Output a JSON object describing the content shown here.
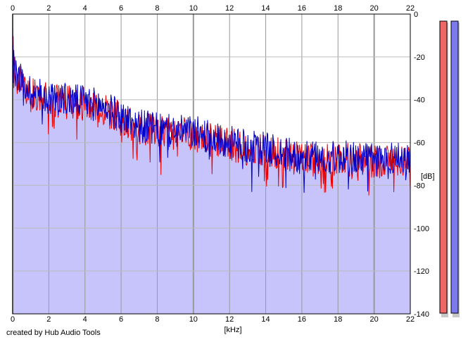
{
  "chart_data": {
    "type": "line",
    "title": "",
    "xlabel": "[kHz]",
    "ylabel": "[dB]",
    "xlim": [
      0,
      22
    ],
    "ylim": [
      -140,
      0
    ],
    "x_ticks": [
      "0",
      "2",
      "4",
      "6",
      "8",
      "10",
      "12",
      "14",
      "16",
      "18",
      "20",
      "22"
    ],
    "y_ticks": [
      "0",
      "-20",
      "-40",
      "-60",
      "-80",
      "-100",
      "-120",
      "-140"
    ],
    "grid": true,
    "series": [
      {
        "color": "#ee0000",
        "profile": [
          [
            0,
            -14
          ],
          [
            0.2,
            -30
          ],
          [
            1,
            -37
          ],
          [
            2,
            -40
          ],
          [
            3,
            -41
          ],
          [
            4,
            -42
          ],
          [
            5,
            -44
          ],
          [
            6,
            -49
          ],
          [
            7,
            -53
          ],
          [
            8,
            -55
          ],
          [
            9,
            -56
          ],
          [
            10,
            -56
          ],
          [
            11,
            -59
          ],
          [
            12,
            -61
          ],
          [
            13,
            -63
          ],
          [
            14,
            -64
          ],
          [
            15,
            -66
          ],
          [
            16,
            -68
          ],
          [
            17,
            -68
          ],
          [
            18,
            -68
          ],
          [
            19,
            -68
          ],
          [
            20,
            -69
          ],
          [
            21,
            -68
          ],
          [
            22,
            -68
          ]
        ]
      },
      {
        "color": "#0000cc",
        "profile": [
          [
            0,
            -12
          ],
          [
            0.2,
            -28
          ],
          [
            1,
            -36
          ],
          [
            2,
            -39
          ],
          [
            3,
            -40
          ],
          [
            4,
            -41
          ],
          [
            5,
            -43
          ],
          [
            6,
            -48
          ],
          [
            7,
            -52
          ],
          [
            8,
            -54
          ],
          [
            9,
            -55
          ],
          [
            10,
            -55
          ],
          [
            11,
            -58
          ],
          [
            12,
            -60
          ],
          [
            13,
            -62
          ],
          [
            14,
            -63
          ],
          [
            15,
            -65
          ],
          [
            16,
            -67
          ],
          [
            17,
            -67
          ],
          [
            18,
            -67
          ],
          [
            19,
            -67
          ],
          [
            20,
            -68
          ],
          [
            21,
            -67
          ],
          [
            22,
            -67
          ]
        ]
      }
    ],
    "fill_color": "#c6c4fa",
    "level_meters": [
      {
        "channel": "left",
        "color": "#ee6666",
        "level": 0.0
      },
      {
        "channel": "right",
        "color": "#7a7aee",
        "level": 0.0
      }
    ]
  },
  "footer": {
    "credit": "created by Hub Audio Tools"
  }
}
